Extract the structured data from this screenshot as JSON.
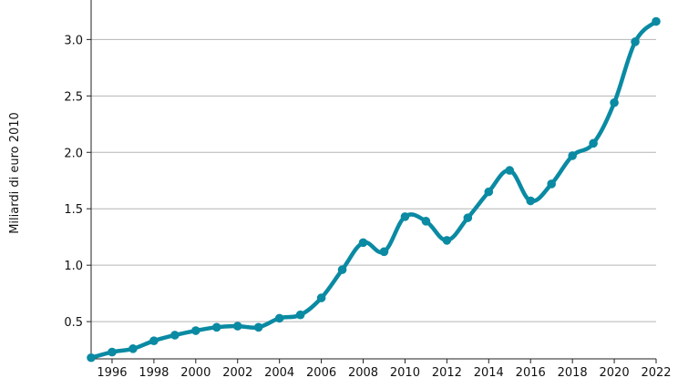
{
  "chart_data": {
    "type": "line",
    "title": "",
    "xlabel": "",
    "ylabel": "Miliardi di euro 2010",
    "x": [
      1995,
      1996,
      1997,
      1998,
      1999,
      2000,
      2001,
      2002,
      2003,
      2004,
      2005,
      2006,
      2007,
      2008,
      2009,
      2010,
      2011,
      2012,
      2013,
      2014,
      2015,
      2016,
      2017,
      2018,
      2019,
      2020,
      2021,
      2022
    ],
    "series": [
      {
        "name": "Miliardi di euro 2010",
        "values": [
          0.18,
          0.23,
          0.26,
          0.33,
          0.38,
          0.42,
          0.45,
          0.46,
          0.45,
          0.53,
          0.56,
          0.71,
          0.96,
          1.2,
          1.12,
          1.43,
          1.39,
          1.22,
          1.42,
          1.65,
          1.84,
          1.57,
          1.72,
          1.97,
          2.08,
          2.44,
          2.98,
          3.16
        ],
        "color": "#0a8aa3"
      }
    ],
    "xlim": [
      1995,
      2022
    ],
    "ylim": [
      0.17,
      3.35
    ],
    "xticks": [
      "1996",
      "1998",
      "2000",
      "2002",
      "2004",
      "2006",
      "2008",
      "2010",
      "2012",
      "2014",
      "2016",
      "2018",
      "2020",
      "2022"
    ],
    "yticks": [
      "0.5",
      "1.0",
      "1.5",
      "2.0",
      "2.5",
      "3.0"
    ],
    "grid": "horizontal",
    "legend": "none"
  }
}
